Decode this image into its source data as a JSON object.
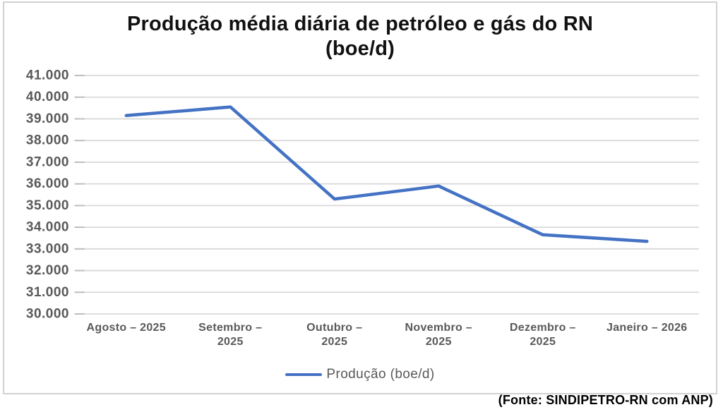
{
  "page": {
    "source_note": "(Fonte: SINDIPETRO-RN com ANP)"
  },
  "chart_data": {
    "type": "line",
    "title": "Produção média diária de petróleo e gás do RN (boe/d)",
    "title_lines": [
      "Produção média diária de petróleo e gás do RN",
      "(boe/d)"
    ],
    "categories": [
      "Agosto – 2025",
      "Setembro – 2025",
      "Outubro – 2025",
      "Novembro – 2025",
      "Dezembro – 2025",
      "Janeiro – 2026"
    ],
    "category_label_lines": [
      [
        "Agosto – 2025"
      ],
      [
        "Setembro –",
        "2025"
      ],
      [
        "Outubro –",
        "2025"
      ],
      [
        "Novembro –",
        "2025"
      ],
      [
        "Dezembro –",
        "2025"
      ],
      [
        "Janeiro – 2026"
      ]
    ],
    "series": [
      {
        "name": "Produção (boe/d)",
        "values": [
          39150,
          39550,
          35300,
          35900,
          33650,
          33350
        ]
      }
    ],
    "xlabel": "",
    "ylabel": "",
    "ylim": [
      30000,
      41000
    ],
    "ytick_step": 1000,
    "ytick_labels": [
      "30.000",
      "31.000",
      "32.000",
      "33.000",
      "34.000",
      "35.000",
      "36.000",
      "37.000",
      "38.000",
      "39.000",
      "40.000",
      "41.000"
    ],
    "grid": true,
    "legend_position": "bottom",
    "colors": {
      "line": "#4472C4",
      "grid": "#D9D9D9",
      "tick": "#BFBFBF",
      "axis_label": "#595959",
      "title": "#111111",
      "legend_label": "#595959",
      "frame_border": "#D2D2D2",
      "source": "#000000"
    }
  }
}
